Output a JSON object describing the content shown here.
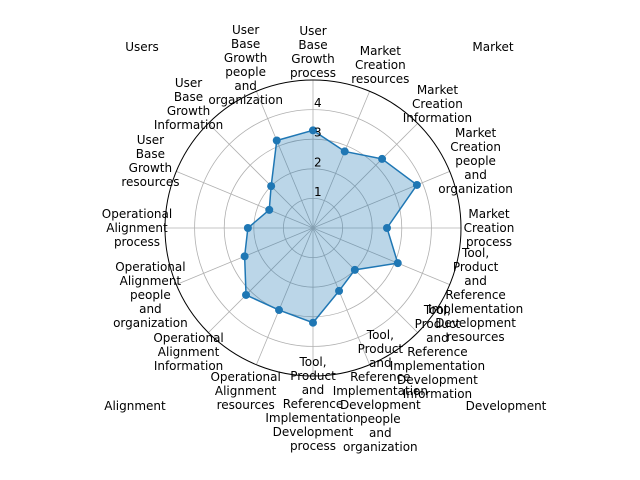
{
  "chart_data": {
    "type": "radar",
    "categories": [
      "User Base Growth process",
      "Market Creation resources",
      "Market Creation Information",
      "Market Creation people and organization",
      "Market Creation process",
      "Tool, Product and Reference Implementation Development resources",
      "Tool, Product and Reference Implementation Development Information",
      "Tool, Product and Reference Implementation Development people and organization",
      "Tool, Product and Reference Implementation Development process",
      "Operational Alignment resources",
      "Operational Alignment Information",
      "Operational Alignment people and organization",
      "Operational Alignment process",
      "User Base Growth resources",
      "User Base Growth Information",
      "User Base Growth people and organization"
    ],
    "values": [
      3.3,
      2.8,
      3.3,
      3.8,
      2.5,
      3.1,
      2.0,
      2.3,
      3.2,
      3.0,
      3.2,
      2.5,
      2.2,
      1.6,
      2.0,
      3.2
    ],
    "color": "#1f77b4",
    "ylim": [
      0,
      5
    ],
    "yticks": [
      1,
      2,
      3,
      4
    ],
    "grid": true,
    "group_labels": [
      "Users",
      "Market",
      "Alignment",
      "Development"
    ]
  }
}
